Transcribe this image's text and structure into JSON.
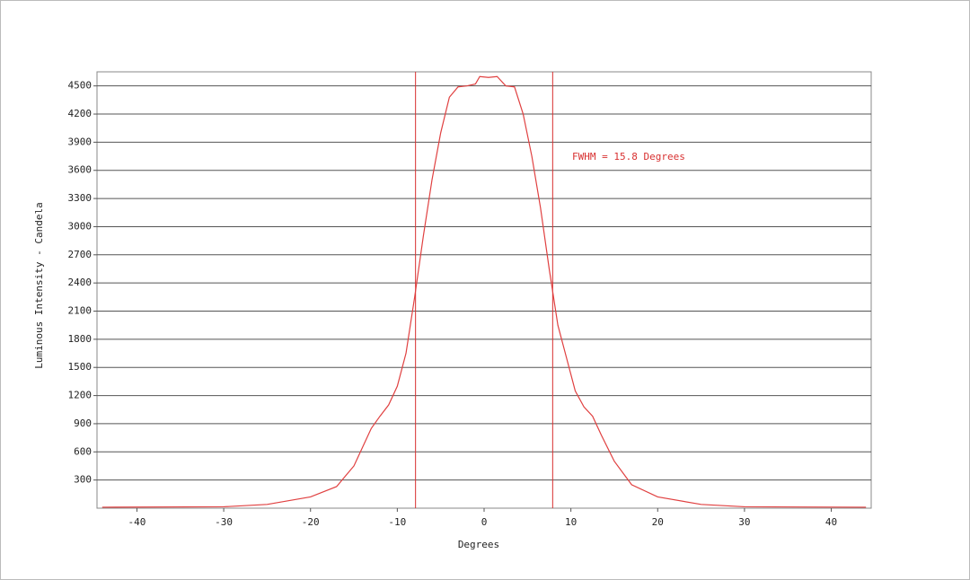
{
  "chart_data": {
    "type": "line",
    "xlabel": "Degrees",
    "ylabel": "Luminous Intensity - Candela",
    "annotation": "FWHM = 15.8 Degrees",
    "markers": [
      -7.9,
      7.9
    ],
    "marker_color": "#d83030",
    "x": [
      -44,
      -30,
      -25,
      -20,
      -17,
      -15,
      -13,
      -12,
      -11,
      -10,
      -9,
      -8,
      -7,
      -6,
      -5,
      -4,
      -3,
      -2,
      -1,
      -0.5,
      0.5,
      1.5,
      2.5,
      3.5,
      4.5,
      5.5,
      6.5,
      7.5,
      8.5,
      9.5,
      10.5,
      11.5,
      12.5,
      13.5,
      15,
      17,
      20,
      25,
      30,
      44
    ],
    "series": [
      {
        "color": "#e04040",
        "values": [
          10,
          15,
          40,
          120,
          230,
          450,
          850,
          980,
          1100,
          1300,
          1650,
          2250,
          2900,
          3500,
          4000,
          4380,
          4490,
          4500,
          4520,
          4600,
          4590,
          4600,
          4500,
          4490,
          4200,
          3750,
          3200,
          2550,
          1950,
          1600,
          1250,
          1080,
          980,
          780,
          500,
          250,
          120,
          40,
          15,
          10
        ]
      }
    ],
    "xlim": [
      -44.6,
      44.6
    ],
    "xticks": [
      -40,
      -30,
      -20,
      -10,
      0,
      10,
      20,
      30,
      40
    ],
    "ylim": [
      0,
      4650
    ],
    "yticks": [
      300,
      600,
      900,
      1200,
      1500,
      1800,
      2100,
      2400,
      2700,
      3000,
      3300,
      3600,
      3900,
      4200,
      4500
    ],
    "grid": true
  }
}
